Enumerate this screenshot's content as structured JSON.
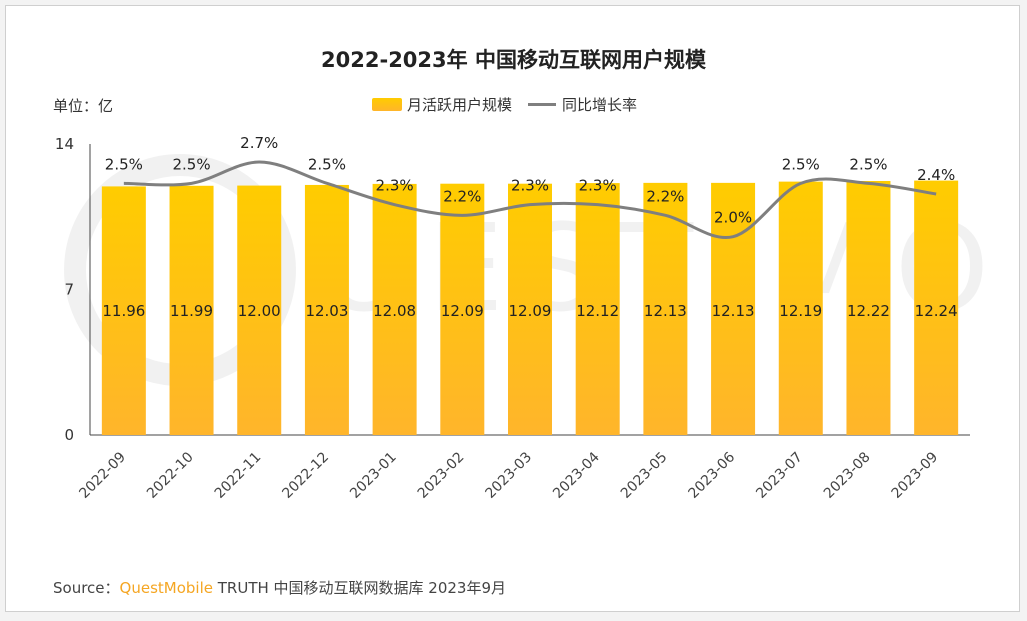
{
  "title": "2022-2023年 中国移动互联网用户规模",
  "unit_label": "单位：亿",
  "legend": {
    "bar_label": "月活跃用户规模",
    "line_label": "同比增长率"
  },
  "source": {
    "prefix": "Source：",
    "brand": "QuestMobile",
    "suffix": " TRUTH 中国移动互联网数据库 2023年9月"
  },
  "colors": {
    "bar_top": "#ffcc00",
    "bar_bottom": "#ffb52b",
    "line": "#7f7f7f",
    "brand": "#f5a623"
  },
  "chart_data": {
    "type": "bar",
    "categories": [
      "2022-09",
      "2022-10",
      "2022-11",
      "2022-12",
      "2023-01",
      "2023-02",
      "2023-03",
      "2023-04",
      "2023-05",
      "2023-06",
      "2023-07",
      "2023-08",
      "2023-09"
    ],
    "series": [
      {
        "name": "月活跃用户规模",
        "type": "bar",
        "axis": "left",
        "values": [
          11.96,
          11.99,
          12.0,
          12.03,
          12.08,
          12.09,
          12.09,
          12.12,
          12.13,
          12.13,
          12.19,
          12.22,
          12.24
        ],
        "labels": [
          "11.96",
          "11.99",
          "12.00",
          "12.03",
          "12.08",
          "12.09",
          "12.09",
          "12.12",
          "12.13",
          "12.13",
          "12.19",
          "12.22",
          "12.24"
        ]
      },
      {
        "name": "同比增长率",
        "type": "line",
        "axis": "right",
        "values": [
          2.5,
          2.5,
          2.7,
          2.5,
          2.3,
          2.2,
          2.3,
          2.3,
          2.2,
          2.0,
          2.5,
          2.5,
          2.4
        ],
        "labels": [
          "2.5%",
          "2.5%",
          "2.7%",
          "2.5%",
          "2.3%",
          "2.2%",
          "2.3%",
          "2.3%",
          "2.2%",
          "2.0%",
          "2.5%",
          "2.5%",
          "2.4%"
        ]
      }
    ],
    "y_ticks": [
      "0",
      "7",
      "14"
    ],
    "ylim": [
      0,
      14
    ]
  }
}
